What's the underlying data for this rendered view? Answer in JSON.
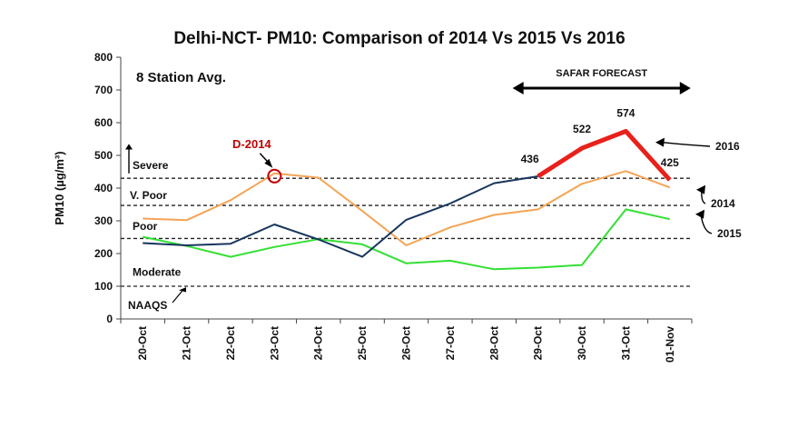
{
  "chart_data": {
    "type": "line",
    "title": "Delhi-NCT- PM10: Comparison of 2014 Vs 2015 Vs 2016",
    "subtitle": "8 Station Avg.",
    "ylabel": "PM10 (µg/m³)",
    "ylim": [
      0,
      800
    ],
    "yticks": [
      0,
      100,
      200,
      300,
      400,
      500,
      600,
      700,
      800
    ],
    "categories": [
      "20-Oct",
      "21-Oct",
      "22-Oct",
      "23-Oct",
      "24-Oct",
      "25-Oct",
      "26-Oct",
      "27-Oct",
      "28-Oct",
      "29-Oct",
      "30-Oct",
      "31-Oct",
      "01-Nov"
    ],
    "grid": false,
    "series": [
      {
        "name": "2014",
        "color": "#f4a455",
        "values": [
          307,
          302,
          363,
          445,
          432,
          330,
          225,
          280,
          318,
          335,
          413,
          452,
          402
        ]
      },
      {
        "name": "2015",
        "color": "#33e033",
        "values": [
          251,
          223,
          190,
          220,
          244,
          228,
          170,
          178,
          152,
          157,
          165,
          335,
          305
        ]
      },
      {
        "name": "2016",
        "color": "#17365d",
        "values": [
          232,
          225,
          230,
          289,
          243,
          190,
          303,
          353,
          415,
          436,
          null,
          null,
          null
        ]
      },
      {
        "name": "2016",
        "color": "#e8211b",
        "forecast": true,
        "values": [
          null,
          null,
          null,
          null,
          null,
          null,
          null,
          null,
          null,
          436,
          522,
          574,
          425
        ]
      }
    ],
    "data_labels": [
      {
        "category": "29-Oct",
        "value": 436,
        "text": "436"
      },
      {
        "category": "30-Oct",
        "value": 522,
        "text": "522"
      },
      {
        "category": "31-Oct",
        "value": 574,
        "text": "574"
      },
      {
        "category": "01-Nov",
        "value": 425,
        "text": "425"
      }
    ],
    "reference_lines": [
      {
        "value": 430,
        "label": "Severe"
      },
      {
        "value": 347,
        "label": "V. Poor"
      },
      {
        "value": 246,
        "label": "Poor"
      },
      {
        "value": 100,
        "label": "NAAQS"
      }
    ],
    "band_labels": {
      "severe": "Severe",
      "vpoor": "V. Poor",
      "poor": "Poor",
      "moderate": "Moderate",
      "naaqs": "NAAQS"
    },
    "annotations": {
      "d2014": {
        "text": "D-2014",
        "category": "23-Oct",
        "value": 445,
        "color": "#c00000"
      },
      "forecast": {
        "text": "SAFAR FORECAST",
        "from": "29-Oct",
        "to": "01-Nov"
      }
    },
    "legend": [
      {
        "text": "2016",
        "series": "2016"
      },
      {
        "text": "2014",
        "series": "2014"
      },
      {
        "text": "2015",
        "series": "2015"
      }
    ]
  }
}
